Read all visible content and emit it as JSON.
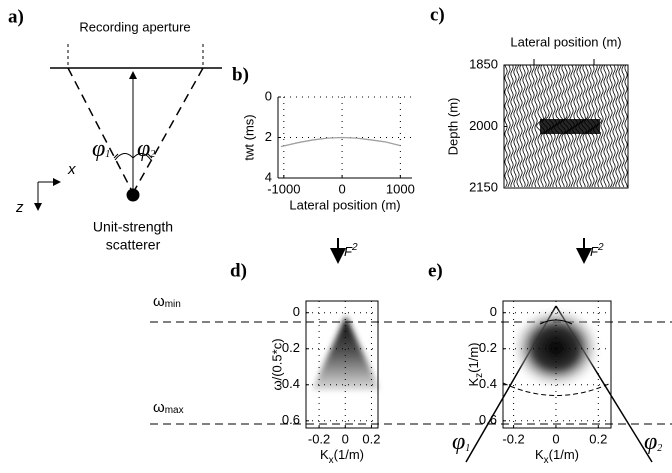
{
  "figure": {
    "panel_labels": [
      "a)",
      "b)",
      "c)",
      "d)",
      "e)"
    ],
    "diagram_a": {
      "aperture": "Recording aperture",
      "phi1": [
        "φ",
        "1"
      ],
      "phi2": [
        "φ",
        "2"
      ],
      "x_axis": "x",
      "z_axis": "z",
      "scatterer": [
        "Unit-strength",
        "scatterer"
      ]
    },
    "operators": [
      [
        "F",
        "2"
      ],
      [
        "F",
        "2"
      ]
    ],
    "omega_min": [
      "ω",
      "min"
    ],
    "omega_max": [
      "ω",
      "max"
    ],
    "phi1": [
      "φ",
      "1"
    ],
    "phi2": [
      "φ",
      "2"
    ]
  },
  "chart_data": [
    {
      "type": "line",
      "x_label": "Lateral position (m)",
      "y_label": "twt (ms)",
      "x": [
        -1050,
        -750,
        -500,
        -250,
        0,
        250,
        500,
        750,
        1000
      ],
      "series": [
        {
          "color": "#a0a0a0",
          "values": [
            2.45,
            2.25,
            2.12,
            2.03,
            2.0,
            2.03,
            2.12,
            2.22,
            2.4
          ]
        }
      ],
      "xlim": [
        -1100,
        1200
      ],
      "ylim": [
        0,
        4
      ],
      "y_inverted": true,
      "xticks": [
        -1000,
        0,
        1000
      ],
      "yticks": [
        0,
        2,
        4
      ],
      "grid": true
    },
    {
      "type": "image",
      "title": "Lateral position (m)",
      "y_label": "Depth (m)",
      "ylim": [
        1850,
        2150
      ],
      "yticks": [
        1850,
        2000,
        2150
      ],
      "y_inverted": true
    },
    {
      "type": "image",
      "x_label": [
        "K",
        "x",
        "(1/m)"
      ],
      "y_label": "ω/(0.5*c)",
      "xlim": [
        -0.3,
        0.25
      ],
      "ylim": [
        -0.065,
        0.64
      ],
      "y_inverted": true,
      "xticks": [
        -0.2,
        0,
        0.2
      ],
      "yticks": [
        0,
        0.2,
        0.4,
        0.6
      ],
      "grid": true
    },
    {
      "type": "image",
      "x_label": [
        "K",
        "x",
        "(1/m)"
      ],
      "y_label": [
        "K",
        "z",
        "(1/m)"
      ],
      "xlim": [
        -0.25,
        0.26
      ],
      "ylim": [
        -0.065,
        0.64
      ],
      "y_inverted": true,
      "xticks": [
        -0.2,
        0,
        0.2
      ],
      "yticks": [
        0,
        0.2,
        0.4,
        0.6
      ],
      "grid": true
    }
  ]
}
